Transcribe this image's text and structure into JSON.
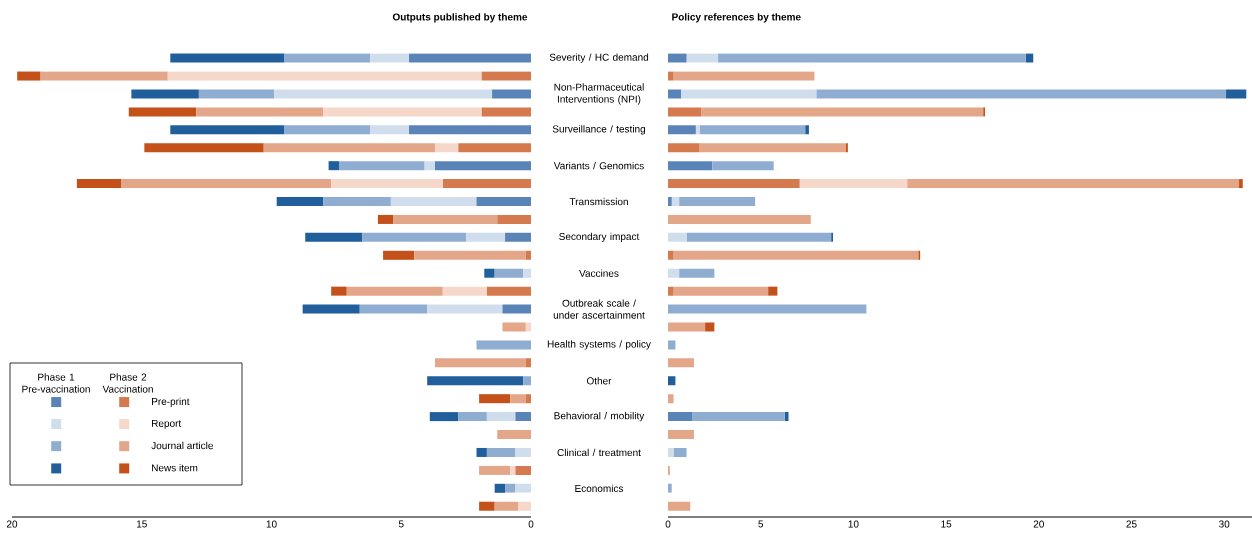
{
  "chart_data": [
    {
      "type": "bar",
      "orientation": "horizontal",
      "stacked": true,
      "title": "Outputs published by theme",
      "categories": [
        "Severity / HC demand",
        null,
        "Non-Pharmaceutical Interventions (NPI)",
        null,
        "Surveillance / testing",
        null,
        "Variants / Genomics",
        null,
        "Transmission",
        null,
        "Secondary impact",
        null,
        "Vaccines",
        null,
        "Outbreak scale / under ascertainment",
        null,
        "Health systems / policy",
        null,
        "Other",
        null,
        "Behavioral / mobility",
        null,
        "Clinical / treatment",
        null,
        "Economics",
        null
      ],
      "xlim": [
        20,
        0
      ],
      "xticks": [
        20,
        15,
        10,
        5,
        0
      ],
      "legend": "bottom left",
      "annotations": [
        "Phase 1 Pre-vaccination",
        "Phase 2 Vaccination"
      ],
      "series": [
        {
          "color": "#5a84b8",
          "values": [
            4.7,
            null,
            1.5,
            null,
            4.7,
            null,
            3.7,
            null,
            2.1,
            null,
            1.0,
            null,
            null,
            null,
            1.1,
            null,
            null,
            null,
            null,
            null,
            0.6,
            null,
            null,
            null,
            null,
            null
          ]
        },
        {
          "color": "#d0ddec",
          "values": [
            1.5,
            null,
            8.4,
            null,
            1.5,
            null,
            0.4,
            null,
            3.3,
            null,
            1.5,
            null,
            0.3,
            null,
            2.9,
            null,
            null,
            null,
            null,
            null,
            1.1,
            null,
            0.6,
            null,
            0.6,
            null
          ]
        },
        {
          "color": "#8fadd0",
          "values": [
            3.3,
            null,
            2.9,
            null,
            3.3,
            null,
            3.3,
            null,
            2.6,
            null,
            4.0,
            null,
            1.1,
            null,
            2.6,
            null,
            2.1,
            null,
            0.3,
            null,
            1.1,
            null,
            1.1,
            null,
            0.4,
            null
          ]
        },
        {
          "color": "#215e9c",
          "values": [
            4.4,
            null,
            2.6,
            null,
            4.4,
            null,
            0.4,
            null,
            1.8,
            null,
            2.2,
            null,
            0.4,
            null,
            2.2,
            null,
            null,
            null,
            3.7,
            null,
            1.1,
            null,
            0.4,
            null,
            0.4,
            null
          ]
        },
        {
          "name": "Pre-print",
          "color": "#d57a4e",
          "values": [
            null,
            1.9,
            null,
            1.9,
            null,
            2.8,
            null,
            3.4,
            null,
            1.3,
            null,
            0.2,
            null,
            1.7,
            null,
            null,
            null,
            0.2,
            null,
            0.2,
            null,
            null,
            null,
            0.6,
            null,
            null
          ]
        },
        {
          "name": "Report",
          "color": "#f5d8c9",
          "values": [
            null,
            12.1,
            null,
            6.1,
            null,
            0.9,
            null,
            4.3,
            null,
            null,
            null,
            null,
            null,
            1.7,
            null,
            0.2,
            null,
            null,
            null,
            null,
            null,
            null,
            null,
            0.2,
            null,
            0.5
          ]
        },
        {
          "name": "Journal article",
          "color": "#e3a688",
          "values": [
            null,
            4.9,
            null,
            4.9,
            null,
            6.6,
            null,
            8.1,
            null,
            4.0,
            null,
            4.3,
            null,
            3.7,
            null,
            0.9,
            null,
            3.5,
            null,
            0.6,
            null,
            1.3,
            null,
            1.2,
            null,
            0.9
          ]
        },
        {
          "name": "News item",
          "color": "#c4501a",
          "values": [
            null,
            0.9,
            null,
            2.6,
            null,
            4.6,
            null,
            1.7,
            null,
            0.6,
            null,
            1.2,
            null,
            0.6,
            null,
            null,
            null,
            null,
            null,
            1.2,
            null,
            null,
            null,
            null,
            null,
            0.6
          ]
        }
      ]
    },
    {
      "type": "bar",
      "orientation": "horizontal",
      "stacked": true,
      "title": "Policy references by theme",
      "xlim": [
        0,
        31.5
      ],
      "xticks": [
        0,
        5,
        10,
        15,
        20,
        25,
        30
      ],
      "tick_labels": "x",
      "series": [
        {
          "color": "#5a84b8",
          "values": [
            1.0,
            null,
            0.7,
            null,
            1.5,
            null,
            2.4,
            null,
            0.2,
            null,
            null,
            null,
            null,
            null,
            null,
            null,
            null,
            null,
            null,
            null,
            1.3,
            null,
            null,
            null,
            null,
            null
          ]
        },
        {
          "color": "#d0ddec",
          "values": [
            1.7,
            null,
            7.3,
            null,
            0.2,
            null,
            null,
            null,
            0.4,
            null,
            1.0,
            null,
            0.6,
            null,
            null,
            null,
            null,
            null,
            null,
            null,
            null,
            null,
            0.3,
            null,
            null,
            null
          ]
        },
        {
          "color": "#8fadd0",
          "values": [
            16.6,
            null,
            22.1,
            null,
            5.7,
            null,
            3.3,
            null,
            4.1,
            null,
            7.8,
            null,
            1.9,
            null,
            10.7,
            null,
            0.4,
            null,
            null,
            null,
            5.0,
            null,
            0.7,
            null,
            0.2,
            null
          ]
        },
        {
          "color": "#215e9c",
          "values": [
            0.4,
            null,
            1.1,
            null,
            0.2,
            null,
            null,
            null,
            null,
            null,
            0.1,
            null,
            null,
            null,
            null,
            null,
            null,
            null,
            0.4,
            null,
            0.2,
            null,
            null,
            null,
            null,
            null
          ]
        },
        {
          "color": "#d57a4e",
          "values": [
            null,
            0.3,
            null,
            1.8,
            null,
            1.7,
            null,
            7.1,
            null,
            null,
            null,
            0.3,
            null,
            0.3,
            null,
            null,
            null,
            null,
            null,
            null,
            null,
            null,
            null,
            null,
            null,
            null
          ]
        },
        {
          "color": "#f5d8c9",
          "values": [
            null,
            null,
            null,
            null,
            null,
            null,
            null,
            5.8,
            null,
            null,
            null,
            null,
            null,
            null,
            null,
            null,
            null,
            null,
            null,
            null,
            null,
            null,
            null,
            null,
            null,
            null
          ]
        },
        {
          "color": "#e3a688",
          "values": [
            null,
            7.6,
            null,
            15.2,
            null,
            7.9,
            null,
            17.9,
            null,
            7.7,
            null,
            13.2,
            null,
            5.1,
            null,
            2.0,
            null,
            1.4,
            null,
            0.3,
            null,
            1.4,
            null,
            0.1,
            null,
            1.2
          ]
        },
        {
          "color": "#c4501a",
          "values": [
            null,
            null,
            null,
            0.1,
            null,
            0.1,
            null,
            0.2,
            null,
            null,
            null,
            0.1,
            null,
            0.5,
            null,
            0.5,
            null,
            null,
            null,
            null,
            null,
            null,
            null,
            null,
            null,
            null
          ]
        }
      ]
    }
  ]
}
